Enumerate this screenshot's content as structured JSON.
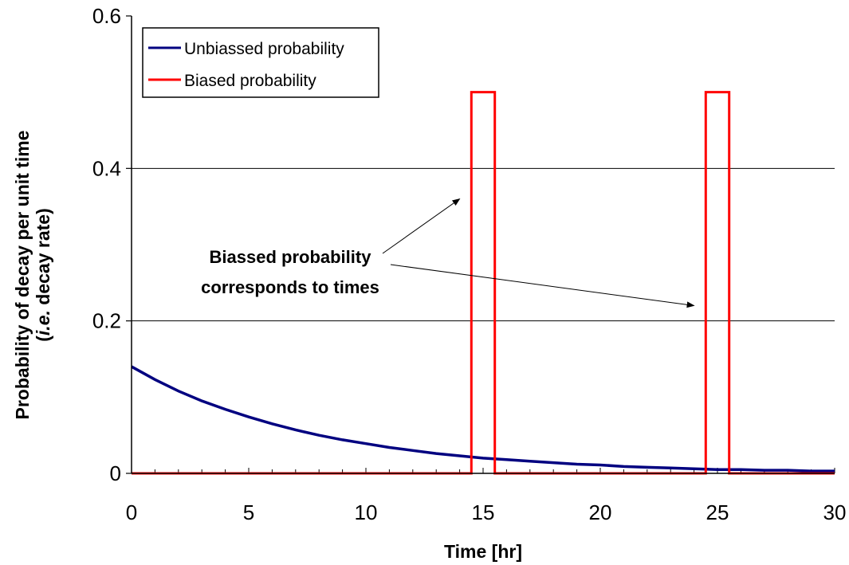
{
  "chart_data": {
    "type": "line",
    "xlabel": "Time [hr]",
    "ylabel_line1": "Probability of decay per unit time",
    "ylabel_line2_italic": "i.e.",
    "ylabel_line2_rest": " decay rate)",
    "ylabel_line2_open": "(",
    "xlim": [
      0,
      30
    ],
    "ylim": [
      0,
      0.6
    ],
    "xticks": [
      0,
      5,
      10,
      15,
      20,
      25,
      30
    ],
    "xtick_labels": [
      "0",
      "5",
      "10",
      "15",
      "20",
      "25",
      "30"
    ],
    "yticks": [
      0,
      0.2,
      0.4,
      0.6
    ],
    "ytick_labels": [
      "0",
      "0.2",
      "0.4",
      "0.6"
    ],
    "grid": "horizontal",
    "legend_position": "top-left",
    "series": [
      {
        "name": "Unbiassed probability",
        "color": "#000080",
        "x": [
          0,
          1,
          2,
          3,
          4,
          5,
          6,
          7,
          8,
          9,
          10,
          11,
          12,
          13,
          14,
          15,
          16,
          17,
          18,
          19,
          20,
          21,
          22,
          23,
          24,
          25,
          26,
          27,
          28,
          29,
          30
        ],
        "values": [
          0.14,
          0.123,
          0.108,
          0.095,
          0.084,
          0.074,
          0.065,
          0.057,
          0.05,
          0.044,
          0.039,
          0.034,
          0.03,
          0.026,
          0.023,
          0.02,
          0.018,
          0.016,
          0.014,
          0.012,
          0.011,
          0.009,
          0.008,
          0.007,
          0.006,
          0.005,
          0.005,
          0.004,
          0.004,
          0.003,
          0.003
        ]
      },
      {
        "name": "Biased probability",
        "color": "#ff0000",
        "x": [
          0,
          14.5,
          14.5,
          15.5,
          15.5,
          24.5,
          24.5,
          25.5,
          25.5,
          30
        ],
        "values": [
          0,
          0,
          0.5,
          0.5,
          0,
          0,
          0.5,
          0.5,
          0,
          0
        ]
      }
    ],
    "annotation": {
      "line1": "Biassed probability",
      "line2": "corresponds to times",
      "arrow_targets": [
        [
          14,
          0.36
        ],
        [
          24,
          0.22
        ]
      ]
    }
  }
}
